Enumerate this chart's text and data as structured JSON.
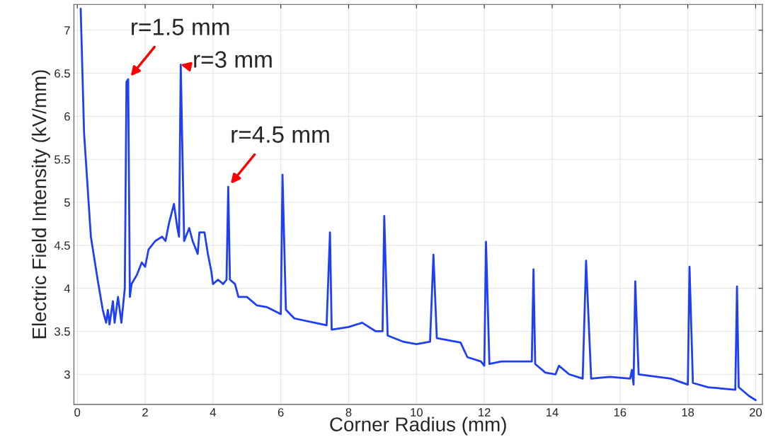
{
  "chart_data": {
    "type": "line",
    "xlabel": "Corner Radius (mm)",
    "ylabel": "Electric Field Intensity (kV/mm)",
    "xlim": [
      -0.1,
      20.2
    ],
    "ylim": [
      2.65,
      7.3
    ],
    "xticks": [
      0,
      2,
      4,
      6,
      8,
      10,
      12,
      14,
      16,
      18,
      20
    ],
    "yticks": [
      3,
      3.5,
      4,
      4.5,
      5,
      5.5,
      6,
      6.5,
      7
    ],
    "grid": true,
    "marker": "none",
    "line_style": "solid",
    "annotations": [
      {
        "text": "r=1.5 mm",
        "x": 1.5,
        "y": 6.43
      },
      {
        "text": "r=3 mm",
        "x": 3.05,
        "y": 6.6
      },
      {
        "text": "r=4.5 mm",
        "x": 4.45,
        "y": 5.18
      }
    ],
    "series": [
      {
        "color": "#1f3ff5",
        "x": [
          0.1,
          0.2,
          0.4,
          0.6,
          0.75,
          0.85,
          0.9,
          0.95,
          1.05,
          1.1,
          1.2,
          1.3,
          1.4,
          1.45,
          1.5,
          1.55,
          1.6,
          1.75,
          1.9,
          2.0,
          2.1,
          2.3,
          2.5,
          2.6,
          2.7,
          2.85,
          2.95,
          3.0,
          3.05,
          3.15,
          3.3,
          3.4,
          3.55,
          3.6,
          3.75,
          3.85,
          3.95,
          4.0,
          4.15,
          4.3,
          4.4,
          4.45,
          4.5,
          4.65,
          4.75,
          5.0,
          5.3,
          5.6,
          5.9,
          6.0,
          6.05,
          6.15,
          6.4,
          7.0,
          7.35,
          7.45,
          7.5,
          8.0,
          8.4,
          8.8,
          9.0,
          9.05,
          9.15,
          9.6,
          10.0,
          10.4,
          10.5,
          10.6,
          11.3,
          11.5,
          11.9,
          12.0,
          12.05,
          12.15,
          12.5,
          13.0,
          13.4,
          13.45,
          13.5,
          13.8,
          14.1,
          14.2,
          14.5,
          14.9,
          15.0,
          15.15,
          15.7,
          16.3,
          16.35,
          16.4,
          16.45,
          16.55,
          17.5,
          18.0,
          18.05,
          18.15,
          18.6,
          19.4,
          19.45,
          19.5,
          19.8,
          20.0
        ],
        "values": [
          7.25,
          5.8,
          4.6,
          4.1,
          3.75,
          3.6,
          3.75,
          3.58,
          3.85,
          3.6,
          3.9,
          3.6,
          4.0,
          6.4,
          6.43,
          3.9,
          4.05,
          4.15,
          4.3,
          4.25,
          4.45,
          4.55,
          4.6,
          4.55,
          4.75,
          4.98,
          4.7,
          4.6,
          6.6,
          4.55,
          4.7,
          4.55,
          4.4,
          4.65,
          4.65,
          4.4,
          4.2,
          4.05,
          4.1,
          4.05,
          4.1,
          5.18,
          4.1,
          4.05,
          3.9,
          3.9,
          3.8,
          3.78,
          3.72,
          3.7,
          5.32,
          3.75,
          3.65,
          3.6,
          3.57,
          4.65,
          3.52,
          3.55,
          3.6,
          3.5,
          3.5,
          4.84,
          3.45,
          3.38,
          3.35,
          3.38,
          4.39,
          3.42,
          3.37,
          3.2,
          3.15,
          3.1,
          4.54,
          3.12,
          3.15,
          3.15,
          3.15,
          4.22,
          3.12,
          3.02,
          3.0,
          3.1,
          3.0,
          2.95,
          4.32,
          2.95,
          2.97,
          2.95,
          3.05,
          2.88,
          4.08,
          3.0,
          2.95,
          2.88,
          4.25,
          2.9,
          2.85,
          2.82,
          4.02,
          2.85,
          2.75,
          2.7
        ]
      }
    ]
  }
}
